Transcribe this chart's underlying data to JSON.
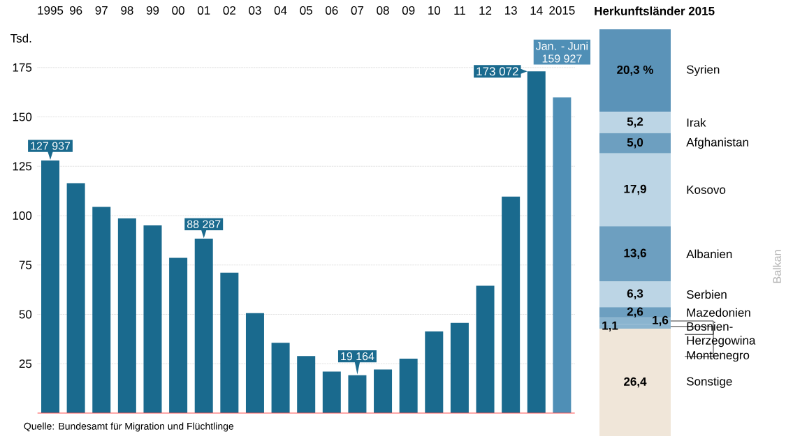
{
  "chart_data": [
    {
      "type": "bar",
      "ylabel": "Tsd.",
      "categories": [
        "1995",
        "96",
        "97",
        "98",
        "99",
        "00",
        "01",
        "02",
        "03",
        "04",
        "05",
        "06",
        "07",
        "08",
        "09",
        "10",
        "11",
        "12",
        "13",
        "14",
        "2015"
      ],
      "values": [
        127.9,
        116.4,
        104.4,
        98.6,
        95.1,
        78.6,
        88.3,
        71.1,
        50.6,
        35.6,
        28.9,
        21.0,
        19.2,
        22.1,
        27.6,
        41.3,
        45.7,
        64.5,
        109.6,
        173.1,
        159.9
      ],
      "colors": [
        "#1a6a8e",
        "#1a6a8e",
        "#1a6a8e",
        "#1a6a8e",
        "#1a6a8e",
        "#1a6a8e",
        "#1a6a8e",
        "#1a6a8e",
        "#1a6a8e",
        "#1a6a8e",
        "#1a6a8e",
        "#1a6a8e",
        "#1a6a8e",
        "#1a6a8e",
        "#1a6a8e",
        "#1a6a8e",
        "#1a6a8e",
        "#1a6a8e",
        "#1a6a8e",
        "#1a6a8e",
        "#4f8fb6"
      ],
      "ylim": [
        0,
        175
      ],
      "yticks": [
        25,
        50,
        75,
        100,
        125,
        150,
        175
      ],
      "grid": "y",
      "annotations": [
        {
          "text": "127 937",
          "x": "1995",
          "y": 127.937
        },
        {
          "text": "88 287",
          "x": "01",
          "y": 88.287
        },
        {
          "text": "19 164",
          "x": "07",
          "y": 19.164
        },
        {
          "text": "173 072",
          "x": "14",
          "y": 173.072
        },
        "Jan. - Juni",
        "159 927",
        "Quelle: Bundesamt für Migration und Flüchtlinge"
      ]
    },
    {
      "type": "bar",
      "title": "Herkunftsländer 2015",
      "stacked": true,
      "categories": [
        null
      ],
      "series": [
        {
          "name": "Sonstige",
          "color": "#f0e6d9",
          "values": [
            26.4
          ],
          "value_labels": [
            "26,4"
          ]
        },
        {
          "name": "Montenegro",
          "color": "#8ab4cf",
          "values": [
            1.1
          ],
          "value_labels": [
            "1,1"
          ]
        },
        {
          "name": "Bosnien-Herzegowina",
          "color": "#8ab4cf",
          "values": [
            1.6
          ],
          "value_labels": [
            "1,6"
          ]
        },
        {
          "name": "Mazedonien",
          "color": "#6d9fc0",
          "values": [
            2.6
          ],
          "value_labels": [
            "2,6"
          ]
        },
        {
          "name": "Serbien",
          "color": "#bcd5e5",
          "values": [
            6.3
          ],
          "value_labels": [
            "6,3"
          ]
        },
        {
          "name": "Albanien",
          "color": "#6d9fc0",
          "values": [
            13.6
          ],
          "value_labels": [
            "13,6"
          ]
        },
        {
          "name": "Kosovo",
          "color": "#bcd5e5",
          "values": [
            17.9
          ],
          "value_labels": [
            "17,9"
          ]
        },
        {
          "name": "Afghanistan",
          "color": "#6d9fc0",
          "values": [
            5.0
          ],
          "value_labels": [
            "5,0"
          ]
        },
        {
          "name": "Irak",
          "color": "#bcd5e5",
          "values": [
            5.2
          ],
          "value_labels": [
            "5,2"
          ]
        },
        {
          "name": "Syrien",
          "color": "#5b93b8",
          "values": [
            20.3
          ],
          "value_labels": [
            "20,3 %"
          ]
        }
      ],
      "annotations": [
        "Balkan"
      ]
    }
  ]
}
